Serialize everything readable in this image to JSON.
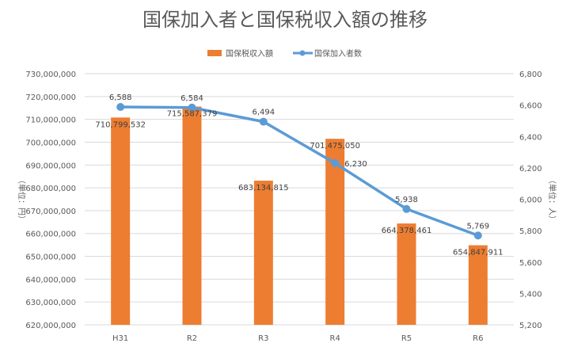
{
  "chart_data": {
    "type": "bar",
    "title": "国保加入者と国保税収入額の推移",
    "categories": [
      "H31",
      "R2",
      "R3",
      "R4",
      "R5",
      "R6"
    ],
    "series": [
      {
        "name": "国保税収入額",
        "type": "bar",
        "axis": "left",
        "color": "#ED7D31",
        "values": [
          710799532,
          715587379,
          683134815,
          701475050,
          664378461,
          654847911
        ],
        "labels": [
          "710,799,532",
          "715,587,379",
          "683,134,815",
          "701,475,050",
          "664,378,461",
          "654,847,911"
        ]
      },
      {
        "name": "国保加入者数",
        "type": "line",
        "axis": "right",
        "color": "#5B9BD5",
        "values": [
          6588,
          6584,
          6494,
          6230,
          5938,
          5769
        ],
        "labels": [
          "6,588",
          "6,584",
          "6,494",
          "6,230",
          "5,938",
          "5,769"
        ]
      }
    ],
    "ylabel": "（単位：円）",
    "y2label": "（単位：人）",
    "ylim": [
      620000000,
      730000000
    ],
    "y2lim": [
      5200,
      6800
    ],
    "yticks": [
      "620,000,000",
      "630,000,000",
      "640,000,000",
      "650,000,000",
      "660,000,000",
      "670,000,000",
      "680,000,000",
      "690,000,000",
      "700,000,000",
      "710,000,000",
      "720,000,000",
      "730,000,000"
    ],
    "y2ticks": [
      "5,200",
      "5,400",
      "5,600",
      "5,800",
      "6,000",
      "6,200",
      "6,400",
      "6,600",
      "6,800"
    ],
    "grid": true,
    "legend": "top-center"
  }
}
